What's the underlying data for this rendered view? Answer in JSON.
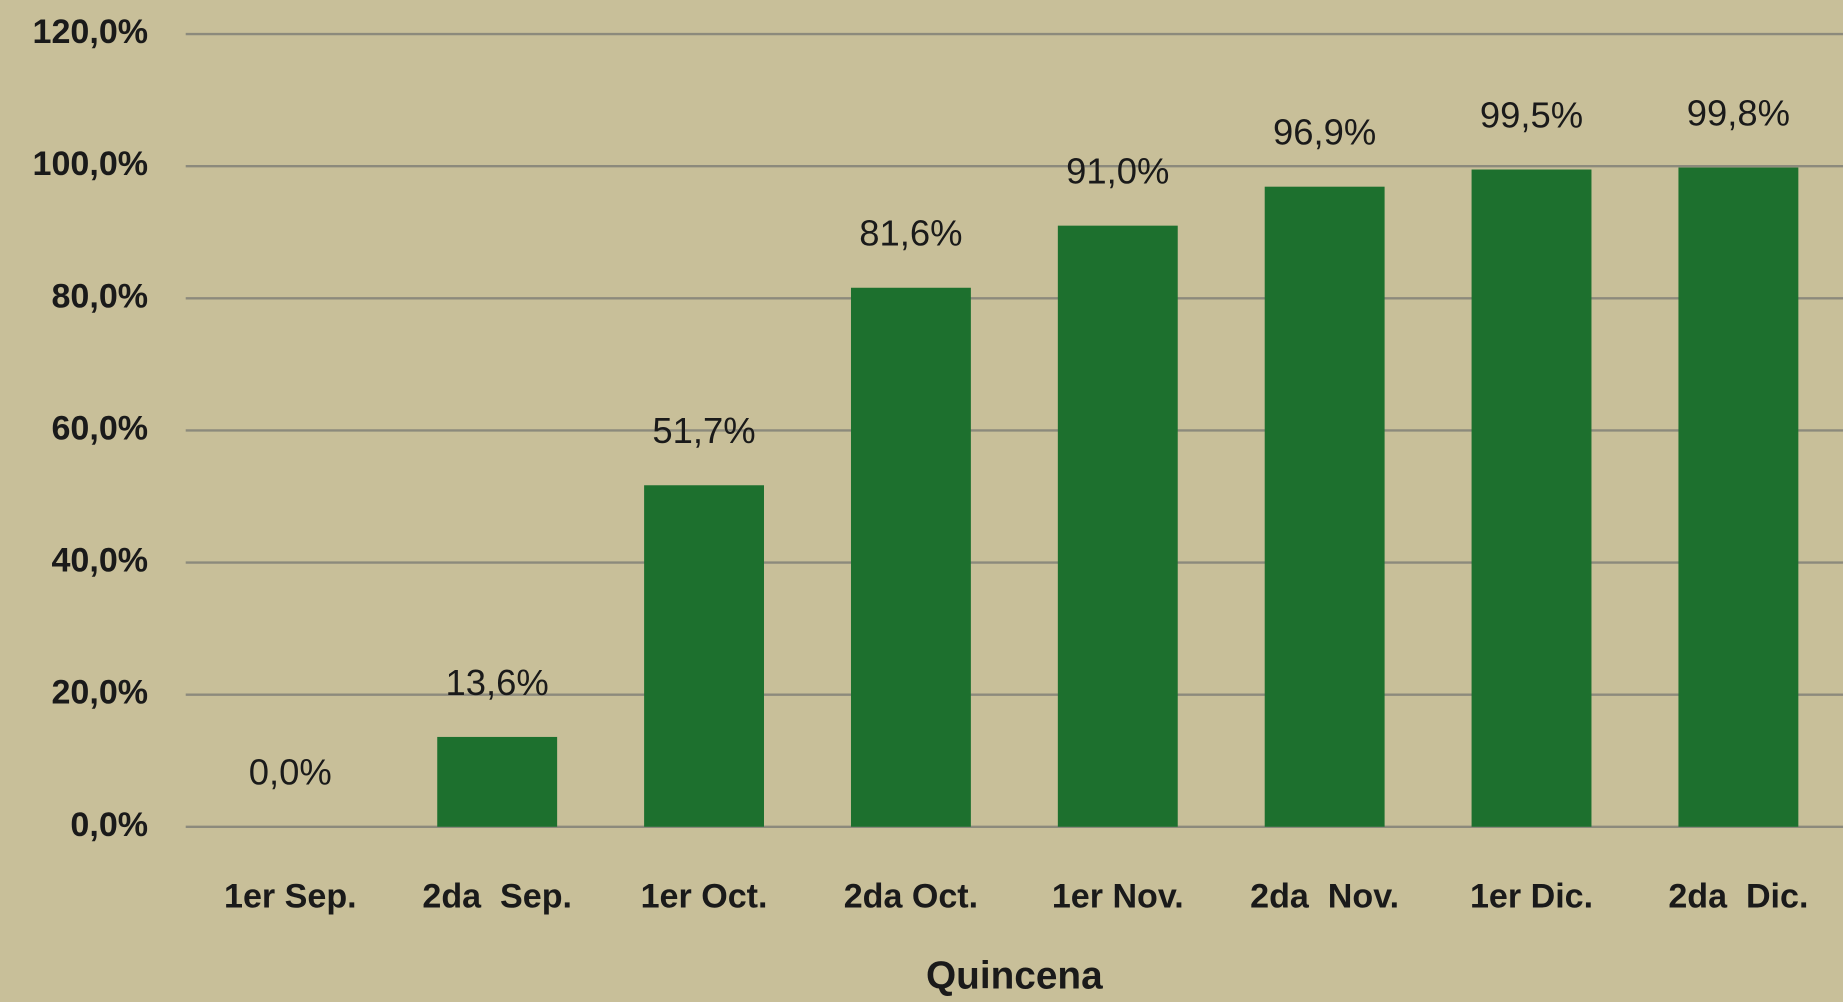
{
  "chart_data": {
    "type": "bar",
    "x_label": "Quincena",
    "categories": [
      "1er Sep.",
      "2da  Sep.",
      "1er Oct.",
      "2da Oct.",
      "1er Nov.",
      "2da  Nov.",
      "1er Dic.",
      "2da  Dic."
    ],
    "values": [
      0.0,
      13.6,
      51.7,
      81.6,
      91.0,
      96.9,
      99.5,
      99.8
    ],
    "value_labels": [
      "0,0%",
      "13,6%",
      "51,7%",
      "81,6%",
      "91,0%",
      "96,9%",
      "99,5%",
      "99,8%"
    ],
    "color": "#1d702e",
    "ylim": [
      0,
      120
    ],
    "yticks": [
      {
        "value": 0,
        "label": "0,0%"
      },
      {
        "value": 20,
        "label": "20,0%"
      },
      {
        "value": 40,
        "label": "40,0%"
      },
      {
        "value": 60,
        "label": "60,0%"
      },
      {
        "value": 80,
        "label": "80,0%"
      },
      {
        "value": 100,
        "label": "100,0%"
      },
      {
        "value": 120,
        "label": "120,0%"
      }
    ],
    "grid": true
  }
}
